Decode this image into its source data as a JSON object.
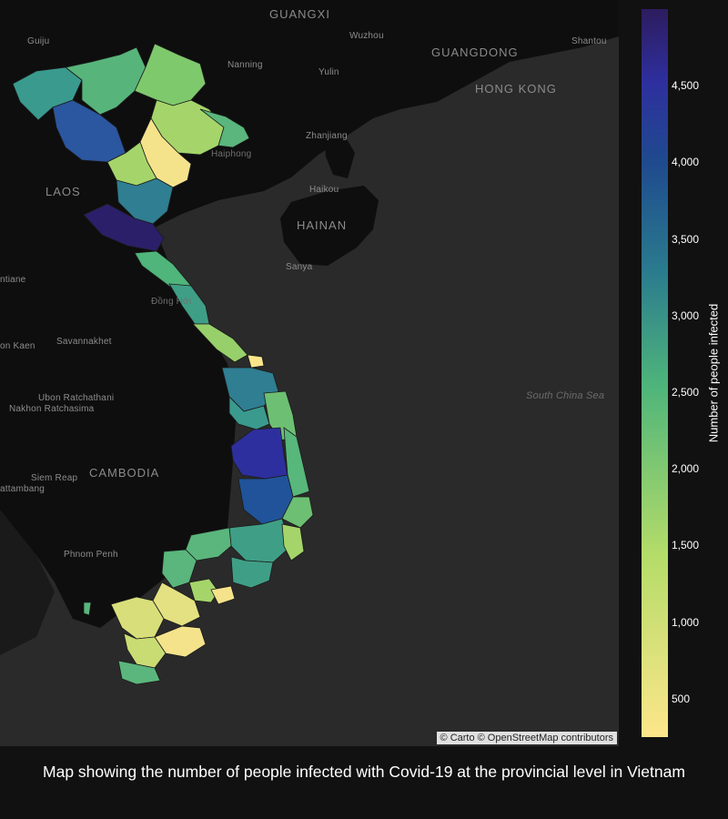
{
  "map": {
    "place_labels": [
      {
        "text": "GUANGXI",
        "cls": "big"
      },
      {
        "text": "Guiju",
        "cls": ""
      },
      {
        "text": "Wuzhou",
        "cls": ""
      },
      {
        "text": "GUANGDONG",
        "cls": "big"
      },
      {
        "text": "Shantou",
        "cls": ""
      },
      {
        "text": "Nanning",
        "cls": ""
      },
      {
        "text": "Yulin",
        "cls": ""
      },
      {
        "text": "HONG KONG",
        "cls": "big"
      },
      {
        "text": "Zhanjiang",
        "cls": ""
      },
      {
        "text": "Haiphong",
        "cls": "dim"
      },
      {
        "text": "LAOS",
        "cls": "big"
      },
      {
        "text": "Haikou",
        "cls": ""
      },
      {
        "text": "HAINAN",
        "cls": "big"
      },
      {
        "text": "Sanya",
        "cls": ""
      },
      {
        "text": "ntiane",
        "cls": ""
      },
      {
        "text": "Đồng Hới",
        "cls": "dim"
      },
      {
        "text": "Savannakhet",
        "cls": ""
      },
      {
        "text": "on Kaen",
        "cls": ""
      },
      {
        "text": "Ubon Ratchathani",
        "cls": ""
      },
      {
        "text": "Nakhon Ratchasima",
        "cls": ""
      },
      {
        "text": "South China Sea",
        "cls": "sea"
      },
      {
        "text": "Siem Reap",
        "cls": ""
      },
      {
        "text": "CAMBODIA",
        "cls": "big"
      },
      {
        "text": "attambang",
        "cls": ""
      },
      {
        "text": "Phnom Penh",
        "cls": ""
      }
    ],
    "attribution": "© Carto © OpenStreetMap contributors"
  },
  "colorbar": {
    "title": "Number of people infected",
    "range": [
      250,
      5000
    ],
    "ticks": [
      {
        "value": 500,
        "label": "500"
      },
      {
        "value": 1000,
        "label": "1,000"
      },
      {
        "value": 1500,
        "label": "1,500"
      },
      {
        "value": 2000,
        "label": "2,000"
      },
      {
        "value": 2500,
        "label": "2,500"
      },
      {
        "value": 3000,
        "label": "3,000"
      },
      {
        "value": 3500,
        "label": "3,500"
      },
      {
        "value": 4000,
        "label": "4,000"
      },
      {
        "value": 4500,
        "label": "4,500"
      }
    ]
  },
  "caption": "Map showing the number of people infected with Covid-19 at the provincial level in Vietnam",
  "colors": {
    "low": "#fde68a",
    "mid_low": "#b4dc69",
    "mid": "#4fb57a",
    "mid_high": "#2a7b8e",
    "high": "#1f4a8e",
    "very_high": "#2e2f9e",
    "max": "#2d1c5e",
    "land": "#0e0e0e",
    "water": "#2a2a2a"
  }
}
